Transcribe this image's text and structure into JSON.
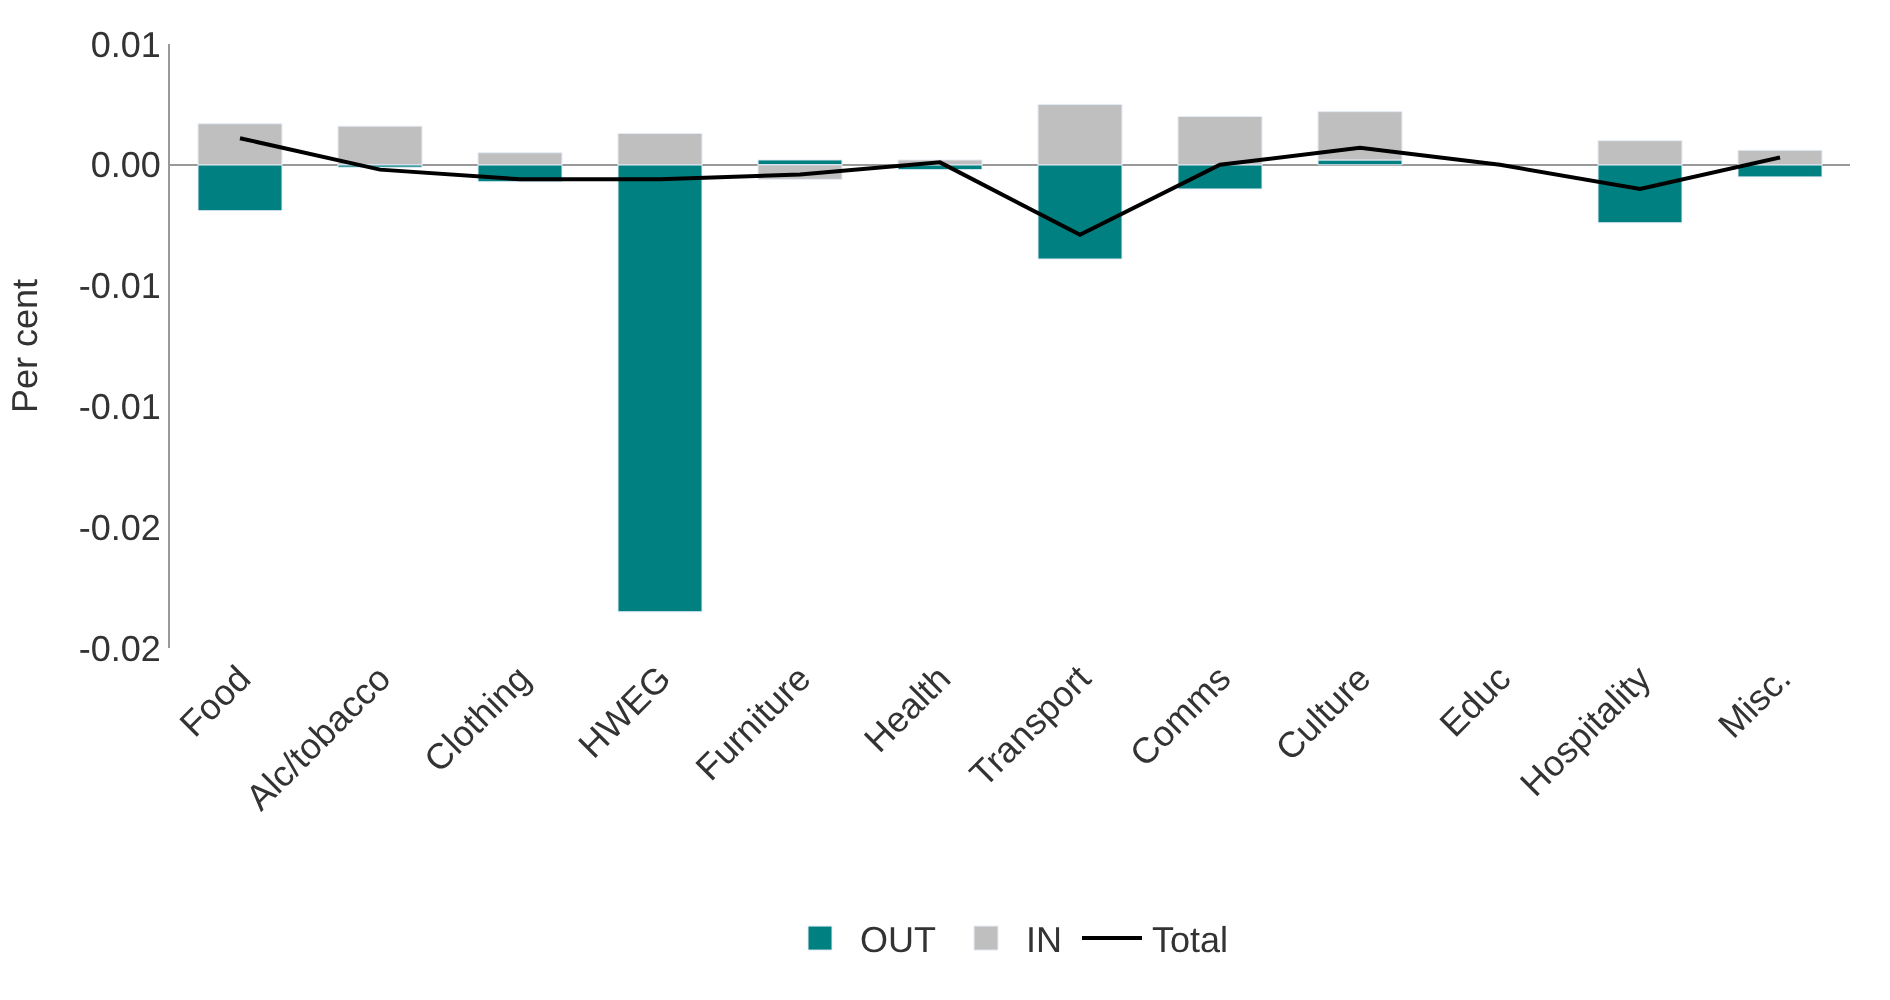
{
  "chart_data": {
    "type": "bar",
    "stacked": true,
    "ylabel": "Per cent",
    "categories": [
      "Food",
      "Alc/tobacco",
      "Clothing",
      "HWEG",
      "Furniture",
      "Health",
      "Transport",
      "Comms",
      "Culture",
      "Educ",
      "Hospitality",
      "Misc."
    ],
    "series": [
      {
        "name": "OUT",
        "color": "#008080",
        "values": [
          -0.0019,
          -0.0001,
          -0.0007,
          -0.0185,
          0.0002,
          -0.0002,
          -0.0039,
          -0.001,
          0.0002,
          null,
          -0.0024,
          -0.0005
        ]
      },
      {
        "name": "IN",
        "color": "#bfbfbf",
        "values": [
          0.0017,
          0.0016,
          0.0005,
          0.0013,
          -0.0006,
          0.0002,
          0.0025,
          0.002,
          0.002,
          null,
          0.001,
          0.0006
        ]
      },
      {
        "name": "Total",
        "type": "line",
        "color": "#000000",
        "values": [
          0.0011,
          -0.0002,
          -0.0006,
          -0.0006,
          -0.0004,
          0.0001,
          -0.0029,
          0,
          0.0007,
          0,
          -0.001,
          0.0003
        ]
      }
    ],
    "ylim": [
      -0.02,
      0.005
    ],
    "yticks": [
      {
        "value": 0.005,
        "label": "0.01"
      },
      {
        "value": 0,
        "label": "0.00"
      },
      {
        "value": -0.005,
        "label": "-0.01"
      },
      {
        "value": -0.01,
        "label": "-0.01"
      },
      {
        "value": -0.015,
        "label": "-0.02"
      },
      {
        "value": -0.02,
        "label": "-0.02"
      }
    ],
    "legend": "bottom",
    "line_style": "solid"
  }
}
